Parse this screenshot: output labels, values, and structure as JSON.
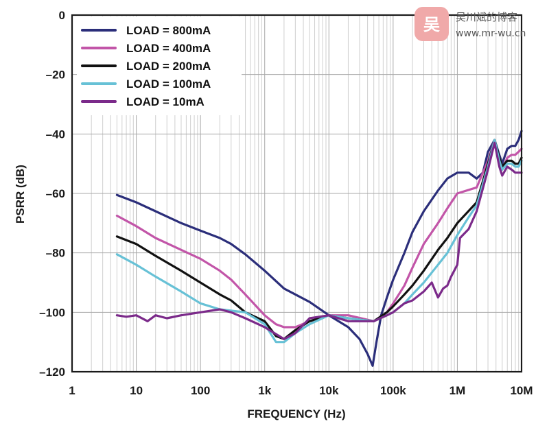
{
  "chart_data": {
    "type": "line",
    "xlabel": "FREQUENCY (Hz)",
    "ylabel": "PSRR (dB)",
    "xscale": "log",
    "xlim": [
      1,
      10000000
    ],
    "ylim": [
      -120,
      0
    ],
    "xticks": [
      {
        "value": 1,
        "label": "1"
      },
      {
        "value": 10,
        "label": "10"
      },
      {
        "value": 100,
        "label": "100"
      },
      {
        "value": 1000,
        "label": "1k"
      },
      {
        "value": 10000,
        "label": "10k"
      },
      {
        "value": 100000,
        "label": "100k"
      },
      {
        "value": 1000000,
        "label": "1M"
      },
      {
        "value": 10000000,
        "label": "10M"
      }
    ],
    "yticks": [
      {
        "value": 0,
        "label": "0"
      },
      {
        "value": -20,
        "label": "–20"
      },
      {
        "value": -40,
        "label": "–40"
      },
      {
        "value": -60,
        "label": "–60"
      },
      {
        "value": -80,
        "label": "–80"
      },
      {
        "value": -100,
        "label": "–100"
      },
      {
        "value": -120,
        "label": "–120"
      }
    ],
    "grid": true,
    "legend_position": "top-left",
    "series": [
      {
        "name": "LOAD = 800mA",
        "color": "#2b2e7a",
        "points": [
          [
            5,
            -60.5
          ],
          [
            10,
            -63
          ],
          [
            20,
            -66
          ],
          [
            50,
            -70
          ],
          [
            100,
            -72.5
          ],
          [
            200,
            -75
          ],
          [
            300,
            -77
          ],
          [
            500,
            -80.5
          ],
          [
            1000,
            -86
          ],
          [
            2000,
            -92
          ],
          [
            5000,
            -96.5
          ],
          [
            10000,
            -101
          ],
          [
            20000,
            -105
          ],
          [
            30000,
            -109
          ],
          [
            40000,
            -114
          ],
          [
            48000,
            -118
          ],
          [
            55000,
            -110
          ],
          [
            65000,
            -101
          ],
          [
            80000,
            -95
          ],
          [
            100000,
            -89
          ],
          [
            150000,
            -80
          ],
          [
            200000,
            -73
          ],
          [
            300000,
            -66
          ],
          [
            500000,
            -59
          ],
          [
            700000,
            -55
          ],
          [
            1000000,
            -53
          ],
          [
            1500000,
            -53
          ],
          [
            2000000,
            -55
          ],
          [
            2500000,
            -53
          ],
          [
            3000000,
            -46
          ],
          [
            3800000,
            -42
          ],
          [
            4500000,
            -47
          ],
          [
            5000000,
            -50
          ],
          [
            6000000,
            -45
          ],
          [
            7000000,
            -44
          ],
          [
            8000000,
            -44
          ],
          [
            9000000,
            -42
          ],
          [
            10000000,
            -39
          ]
        ]
      },
      {
        "name": "LOAD = 400mA",
        "color": "#c255a8",
        "points": [
          [
            5,
            -67.5
          ],
          [
            10,
            -71
          ],
          [
            20,
            -75
          ],
          [
            50,
            -79
          ],
          [
            100,
            -82
          ],
          [
            200,
            -86
          ],
          [
            300,
            -89
          ],
          [
            500,
            -94
          ],
          [
            1000,
            -101
          ],
          [
            1500,
            -104
          ],
          [
            2000,
            -105
          ],
          [
            3000,
            -105
          ],
          [
            5000,
            -103
          ],
          [
            10000,
            -101
          ],
          [
            20000,
            -101
          ],
          [
            50000,
            -103
          ],
          [
            80000,
            -100
          ],
          [
            100000,
            -97
          ],
          [
            150000,
            -91
          ],
          [
            200000,
            -85
          ],
          [
            300000,
            -77
          ],
          [
            500000,
            -70
          ],
          [
            700000,
            -65
          ],
          [
            1000000,
            -60
          ],
          [
            2000000,
            -58
          ],
          [
            3000000,
            -49
          ],
          [
            3800000,
            -42
          ],
          [
            4500000,
            -49
          ],
          [
            5000000,
            -52
          ],
          [
            6000000,
            -48
          ],
          [
            7000000,
            -47
          ],
          [
            8000000,
            -47
          ],
          [
            9000000,
            -46
          ],
          [
            10000000,
            -45
          ]
        ]
      },
      {
        "name": "LOAD = 200mA",
        "color": "#111111",
        "points": [
          [
            5,
            -74.5
          ],
          [
            10,
            -77
          ],
          [
            20,
            -81
          ],
          [
            50,
            -86
          ],
          [
            100,
            -90
          ],
          [
            200,
            -94
          ],
          [
            300,
            -96
          ],
          [
            500,
            -100
          ],
          [
            1000,
            -103
          ],
          [
            1500,
            -108
          ],
          [
            2000,
            -109
          ],
          [
            3000,
            -106
          ],
          [
            5000,
            -103
          ],
          [
            10000,
            -101
          ],
          [
            20000,
            -102
          ],
          [
            50000,
            -103
          ],
          [
            80000,
            -100
          ],
          [
            100000,
            -98
          ],
          [
            150000,
            -94
          ],
          [
            200000,
            -91
          ],
          [
            300000,
            -86
          ],
          [
            500000,
            -79
          ],
          [
            700000,
            -75
          ],
          [
            1000000,
            -70
          ],
          [
            2000000,
            -63
          ],
          [
            3000000,
            -50
          ],
          [
            3800000,
            -42
          ],
          [
            4500000,
            -48
          ],
          [
            5000000,
            -51
          ],
          [
            6000000,
            -49
          ],
          [
            7000000,
            -49
          ],
          [
            8000000,
            -50
          ],
          [
            9000000,
            -50
          ],
          [
            10000000,
            -48
          ]
        ]
      },
      {
        "name": "LOAD = 100mA",
        "color": "#67c1d6",
        "points": [
          [
            5,
            -80.5
          ],
          [
            10,
            -84
          ],
          [
            20,
            -88
          ],
          [
            50,
            -93
          ],
          [
            100,
            -97
          ],
          [
            200,
            -99
          ],
          [
            500,
            -100
          ],
          [
            1000,
            -104
          ],
          [
            1500,
            -110
          ],
          [
            2000,
            -110
          ],
          [
            3000,
            -107
          ],
          [
            5000,
            -104
          ],
          [
            10000,
            -101
          ],
          [
            20000,
            -102
          ],
          [
            50000,
            -103
          ],
          [
            80000,
            -101
          ],
          [
            100000,
            -100
          ],
          [
            150000,
            -97
          ],
          [
            200000,
            -94
          ],
          [
            300000,
            -90
          ],
          [
            500000,
            -84
          ],
          [
            700000,
            -80
          ],
          [
            1000000,
            -74
          ],
          [
            1500000,
            -68
          ],
          [
            2000000,
            -64
          ],
          [
            3000000,
            -51
          ],
          [
            3800000,
            -42
          ],
          [
            4500000,
            -49
          ],
          [
            5000000,
            -52
          ],
          [
            6000000,
            -50
          ],
          [
            7000000,
            -50
          ],
          [
            8000000,
            -51
          ],
          [
            9000000,
            -51
          ],
          [
            10000000,
            -49
          ]
        ]
      },
      {
        "name": "LOAD = 10mA",
        "color": "#7b2a8a",
        "points": [
          [
            5,
            -101
          ],
          [
            7,
            -101.5
          ],
          [
            10,
            -101
          ],
          [
            15,
            -103
          ],
          [
            20,
            -101
          ],
          [
            30,
            -102
          ],
          [
            50,
            -101
          ],
          [
            100,
            -100
          ],
          [
            200,
            -99
          ],
          [
            300,
            -100
          ],
          [
            500,
            -102
          ],
          [
            1000,
            -105
          ],
          [
            2000,
            -109
          ],
          [
            3000,
            -107
          ],
          [
            5000,
            -102
          ],
          [
            10000,
            -101
          ],
          [
            20000,
            -103
          ],
          [
            50000,
            -103
          ],
          [
            80000,
            -101
          ],
          [
            100000,
            -100
          ],
          [
            150000,
            -97
          ],
          [
            200000,
            -96
          ],
          [
            300000,
            -93
          ],
          [
            400000,
            -90
          ],
          [
            500000,
            -95
          ],
          [
            600000,
            -92
          ],
          [
            700000,
            -91
          ],
          [
            800000,
            -88
          ],
          [
            1000000,
            -84
          ],
          [
            1100000,
            -75
          ],
          [
            1500000,
            -72
          ],
          [
            2000000,
            -66
          ],
          [
            3000000,
            -52
          ],
          [
            3800000,
            -43
          ],
          [
            4500000,
            -51
          ],
          [
            5000000,
            -54
          ],
          [
            6000000,
            -51
          ],
          [
            7000000,
            -52
          ],
          [
            8000000,
            -53
          ],
          [
            9000000,
            -53
          ],
          [
            10000000,
            -53
          ]
        ]
      }
    ]
  },
  "watermark": {
    "logo_text": "吴",
    "title": "吴川斌的博客",
    "url": "www.mr-wu.cn",
    "color": "#f0a9a9"
  }
}
